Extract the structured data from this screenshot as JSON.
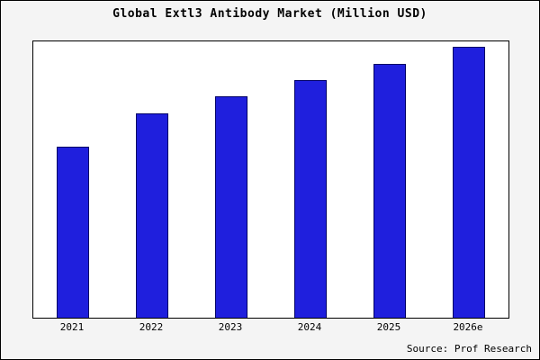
{
  "title": "Global Extl3 Antibody Market (Million USD)",
  "source": "Source: Prof Research",
  "colors": {
    "bar_fill": "#1f1fdd",
    "bar_border": "#000066",
    "outer_background": "#f4f4f4",
    "plot_background": "#ffffff",
    "frame_border": "#000000"
  },
  "chart_data": {
    "type": "bar",
    "title": "Global Extl3 Antibody Market (Million USD)",
    "categories": [
      "2021",
      "2022",
      "2023",
      "2024",
      "2025",
      "2026e"
    ],
    "values": [
      62,
      74,
      80,
      86,
      92,
      98
    ],
    "value_note": "relative bar heights in % of plot height; no y-axis scale shown in image",
    "xlabel": "",
    "ylabel": "",
    "ylim": [
      0,
      100
    ],
    "grid": false,
    "legend": false,
    "annotations": [
      "Source: Prof Research"
    ]
  }
}
